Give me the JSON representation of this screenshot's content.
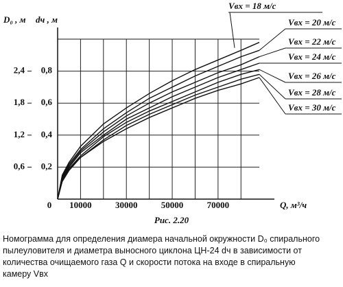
{
  "chart_data": {
    "type": "line",
    "x_label": "Q, м³/ч",
    "y_label": "dч , м",
    "y2_label": "D₀ , м",
    "origin_label": "0",
    "x": [
      0,
      2000,
      5000,
      10000,
      20000,
      30000,
      40000,
      50000,
      60000,
      70000,
      80000,
      88000
    ],
    "xlim": [
      0,
      88000
    ],
    "xticks": [
      10000,
      30000,
      50000,
      70000
    ],
    "xgrid": [
      10000,
      20000,
      30000,
      40000,
      50000,
      60000,
      70000,
      80000
    ],
    "ylim": [
      0,
      1.0
    ],
    "yticks": [
      {
        "value": 0.2,
        "label": "0,2"
      },
      {
        "value": 0.4,
        "label": "0,4"
      },
      {
        "value": 0.6,
        "label": "0,6"
      },
      {
        "value": 0.8,
        "label": "0,8"
      }
    ],
    "y2lim": [
      0,
      3.0
    ],
    "y2ticks": [
      {
        "value": 0.6,
        "label": "0,6"
      },
      {
        "value": 1.2,
        "label": "1,2"
      },
      {
        "value": 1.8,
        "label": "1,8"
      },
      {
        "value": 2.4,
        "label": "2,4"
      }
    ],
    "grid": true,
    "series": [
      {
        "name": "Vвх = 18 м/с",
        "color": "#111111",
        "values": [
          0,
          0.15,
          0.23,
          0.33,
          0.47,
          0.57,
          0.66,
          0.74,
          0.81,
          0.87,
          0.93,
          0.98
        ]
      },
      {
        "name": "Vвх = 20 м/с",
        "color": "#111111",
        "values": [
          0,
          0.14,
          0.22,
          0.31,
          0.44,
          0.54,
          0.63,
          0.7,
          0.77,
          0.83,
          0.89,
          0.93
        ]
      },
      {
        "name": "Vвх = 22 м/с",
        "color": "#111111",
        "values": [
          0,
          0.13,
          0.21,
          0.3,
          0.42,
          0.52,
          0.6,
          0.67,
          0.73,
          0.79,
          0.84,
          0.89
        ]
      },
      {
        "name": "Vвх = 24 м/с",
        "color": "#111111",
        "values": [
          0,
          0.13,
          0.2,
          0.29,
          0.4,
          0.5,
          0.57,
          0.64,
          0.7,
          0.76,
          0.81,
          0.85
        ]
      },
      {
        "name": "Vвх = 26 м/с",
        "color": "#111111",
        "values": [
          0,
          0.12,
          0.19,
          0.27,
          0.39,
          0.48,
          0.55,
          0.61,
          0.67,
          0.73,
          0.78,
          0.81
        ]
      },
      {
        "name": "Vвх = 28 м/с",
        "color": "#111111",
        "values": [
          0,
          0.12,
          0.19,
          0.26,
          0.37,
          0.46,
          0.53,
          0.59,
          0.65,
          0.7,
          0.75,
          0.78
        ]
      },
      {
        "name": "Vвх = 30 м/с",
        "color": "#111111",
        "values": [
          0,
          0.11,
          0.18,
          0.26,
          0.36,
          0.44,
          0.51,
          0.57,
          0.63,
          0.68,
          0.72,
          0.76
        ]
      }
    ],
    "figure_label": "Рис. 2.20",
    "caption": [
      "Номограмма для определения диамера начальной окружности D₀ спирального",
      "пылеуловителя  и  диаметра выносного циклона ЦН-24 dч в зависимости от",
      "количества очищаемого газа Q и скорости потока на входе в спиральную",
      "камеру Vвх"
    ]
  }
}
